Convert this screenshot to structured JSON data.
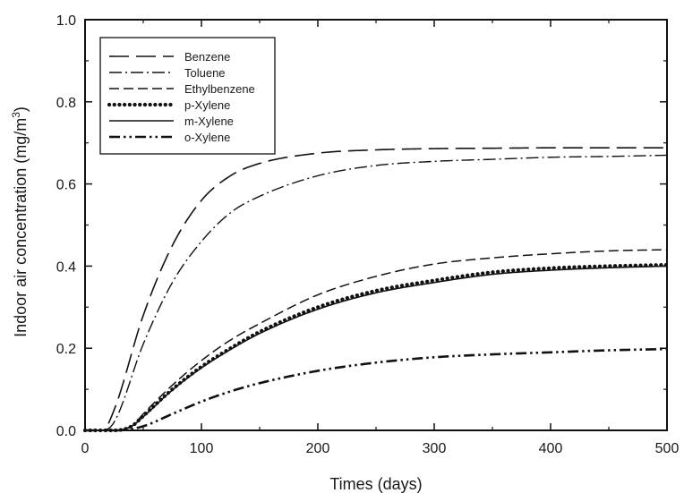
{
  "chart_data": {
    "type": "line",
    "xlabel": "Times (days)",
    "ylabel_main": "Indoor air concentration (mg/m",
    "ylabel_sup": "3",
    "ylabel_close": ")",
    "xlim": [
      0,
      500
    ],
    "ylim": [
      0,
      1.0
    ],
    "xticks": [
      0,
      100,
      200,
      300,
      400,
      500
    ],
    "yticks": [
      0.0,
      0.2,
      0.4,
      0.6,
      0.8,
      1.0
    ],
    "xtick_labels": [
      "0",
      "100",
      "200",
      "300",
      "400",
      "500"
    ],
    "ytick_labels": [
      "0.0",
      "0.2",
      "0.4",
      "0.6",
      "0.8",
      "1.0"
    ],
    "grid": false,
    "legend_position": "top-left",
    "series": [
      {
        "name": "Benzene",
        "style": "long-dash",
        "x": [
          0,
          15,
          25,
          50,
          75,
          100,
          125,
          150,
          200,
          250,
          300,
          350,
          400,
          450,
          500
        ],
        "y": [
          0.0,
          0.0,
          0.05,
          0.28,
          0.45,
          0.56,
          0.62,
          0.65,
          0.675,
          0.683,
          0.686,
          0.687,
          0.688,
          0.688,
          0.688
        ]
      },
      {
        "name": "Toluene",
        "style": "dash-dot",
        "x": [
          0,
          15,
          25,
          50,
          75,
          100,
          125,
          150,
          200,
          250,
          300,
          350,
          400,
          450,
          500
        ],
        "y": [
          0.0,
          0.0,
          0.02,
          0.21,
          0.36,
          0.46,
          0.53,
          0.57,
          0.62,
          0.645,
          0.655,
          0.66,
          0.665,
          0.667,
          0.67
        ]
      },
      {
        "name": "Ethylbenzene",
        "style": "medium-dash",
        "x": [
          0,
          25,
          40,
          50,
          75,
          100,
          125,
          150,
          200,
          250,
          300,
          350,
          400,
          450,
          500
        ],
        "y": [
          0.0,
          0.0,
          0.01,
          0.04,
          0.11,
          0.17,
          0.22,
          0.26,
          0.33,
          0.375,
          0.405,
          0.42,
          0.43,
          0.437,
          0.44
        ]
      },
      {
        "name": "p-Xylene",
        "style": "dotted",
        "x": [
          0,
          25,
          40,
          50,
          75,
          100,
          125,
          150,
          200,
          250,
          300,
          350,
          400,
          450,
          500
        ],
        "y": [
          0.0,
          0.0,
          0.01,
          0.035,
          0.1,
          0.155,
          0.2,
          0.24,
          0.3,
          0.34,
          0.365,
          0.385,
          0.395,
          0.4,
          0.403
        ]
      },
      {
        "name": "m-Xylene",
        "style": "solid",
        "x": [
          0,
          25,
          40,
          50,
          75,
          100,
          125,
          150,
          200,
          250,
          300,
          350,
          400,
          450,
          500
        ],
        "y": [
          0.0,
          0.0,
          0.01,
          0.033,
          0.098,
          0.152,
          0.197,
          0.236,
          0.295,
          0.335,
          0.36,
          0.38,
          0.39,
          0.396,
          0.4
        ]
      },
      {
        "name": "o-Xylene",
        "style": "dash-dot-dot",
        "x": [
          0,
          30,
          50,
          75,
          100,
          125,
          150,
          200,
          250,
          300,
          350,
          400,
          450,
          500
        ],
        "y": [
          0.0,
          0.0,
          0.01,
          0.04,
          0.07,
          0.095,
          0.115,
          0.145,
          0.165,
          0.178,
          0.185,
          0.19,
          0.195,
          0.198
        ]
      }
    ]
  }
}
